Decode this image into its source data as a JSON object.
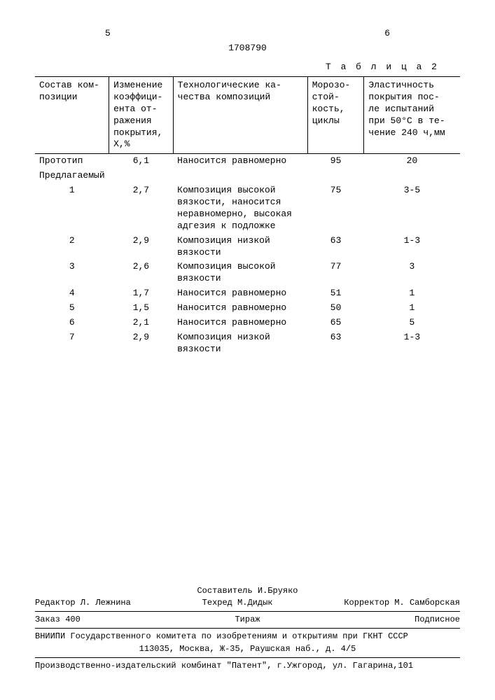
{
  "page_left": "5",
  "page_right": "6",
  "doc_number": "1708790",
  "table": {
    "caption": "Т а б л и ц а  2",
    "columns": [
      "Состав ком-\nпозиции",
      "Изменение\nкоэффици-\nента от-\nражения\nпокрытия,\nХ,%",
      "Технологические ка-\nчества композиций",
      "Морозо-\nстой-\nкость,\nциклы",
      "Эластичность\nпокрытия пос-\nле испытаний\nпри 50°С в те-\nчение 240 ч,мм"
    ],
    "rows": [
      [
        "Прототип",
        "6,1",
        "Наносится равномерно",
        "95",
        "20"
      ],
      [
        "Предлагаемый",
        "",
        "",
        "",
        ""
      ],
      [
        "1",
        "2,7",
        "Композиция высокой\nвязкости, наносится\nнеравномерно, высокая\nадгезия к подложке",
        "75",
        "3-5"
      ],
      [
        "2",
        "2,9",
        "Композиция низкой\nвязкости",
        "63",
        "1-3"
      ],
      [
        "3",
        "2,6",
        "Композиция высокой\nвязкости",
        "77",
        "3"
      ],
      [
        "4",
        "1,7",
        "Наносится равномерно",
        "51",
        "1"
      ],
      [
        "5",
        "1,5",
        "Наносится равномерно",
        "50",
        "1"
      ],
      [
        "6",
        "2,1",
        "Наносится равномерно",
        "65",
        "5"
      ],
      [
        "7",
        "2,9",
        "Композиция низкой\nвязкости",
        "63",
        "1-3"
      ]
    ]
  },
  "footer": {
    "line_compiler": "Составитель И.Бруяко",
    "editor": "Редактор Л. Лежнина",
    "techred": "Техред М.Дидык",
    "corrector": "Корректор М. Самборская",
    "order": "Заказ 400",
    "tirazh": "Тираж",
    "subscr": "Подписное",
    "inst": "ВНИИПИ Государственного комитета по изобретениям и открытиям при ГКНТ СССР",
    "addr": "113035, Москва, Ж-35, Раушская наб., д. 4/5",
    "publisher": "Производственно-издательский комбинат \"Патент\", г.Ужгород, ул. Гагарина,101"
  }
}
